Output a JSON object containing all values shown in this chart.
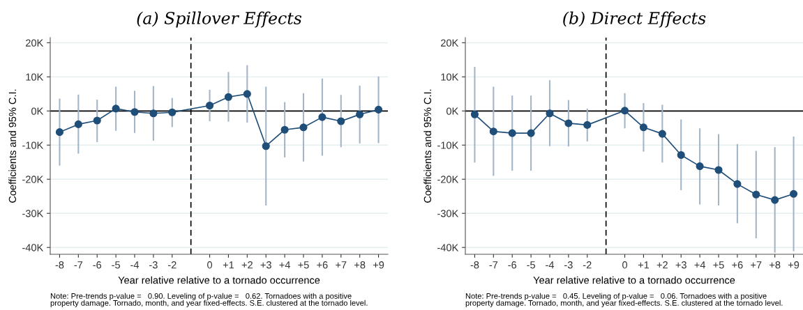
{
  "chart_data": [
    {
      "type": "line",
      "title": "(a) Spillover Effects",
      "xlabel": "Year relative relative to a tornado occurrence",
      "ylabel": "Coefficients and 95% C.I.",
      "x": [
        -8,
        -7,
        -6,
        -5,
        -4,
        -3,
        -2,
        0,
        1,
        2,
        3,
        4,
        5,
        6,
        7,
        8,
        9
      ],
      "xlim": [
        -8.5,
        9.5
      ],
      "xticks": [
        -8,
        -7,
        -6,
        -5,
        -4,
        -3,
        -2,
        0,
        {
          "value": 1,
          "label": "+1"
        },
        {
          "value": 2,
          "label": "+2"
        },
        {
          "value": 3,
          "label": "+3"
        },
        {
          "value": 4,
          "label": "+4"
        },
        {
          "value": 5,
          "label": "+5"
        },
        {
          "value": 6,
          "label": "+6"
        },
        {
          "value": 7,
          "label": "+7"
        },
        {
          "value": 8,
          "label": "+8"
        },
        {
          "value": 9,
          "label": "+9"
        }
      ],
      "series": [
        {
          "color": "#1f4e79",
          "values": [
            -6.2,
            -3.9,
            -2.8,
            0.7,
            -0.3,
            -0.7,
            -0.4,
            1.6,
            4.1,
            5.0,
            -10.3,
            -5.5,
            -4.8,
            -1.8,
            -3.0,
            -1.0,
            0.4
          ],
          "errors": [
            [
              -15.8,
              3.4
            ],
            [
              -12.3,
              4.6
            ],
            [
              -8.9,
              3.1
            ],
            [
              -5.6,
              6.9
            ],
            [
              -6.2,
              5.7
            ],
            [
              -8.5,
              7.1
            ],
            [
              -4.5,
              3.6
            ],
            [
              -2.8,
              6.0
            ],
            [
              -2.9,
              11.2
            ],
            [
              -3.2,
              13.2
            ],
            [
              -27.5,
              6.9
            ],
            [
              -13.4,
              2.4
            ],
            [
              -14.6,
              5.0
            ],
            [
              -12.9,
              9.3
            ],
            [
              -10.4,
              4.5
            ],
            [
              -9.3,
              7.2
            ],
            [
              -9.2,
              9.9
            ]
          ]
        }
      ],
      "marker": "circle",
      "line_style": "solid",
      "grid": "y",
      "ylim": [
        -42,
        21.5
      ],
      "yticks": [
        {
          "value": -40,
          "label": "-40K"
        },
        {
          "value": -30,
          "label": "-30K"
        },
        {
          "value": -20,
          "label": "-20K"
        },
        {
          "value": -10,
          "label": "-10K"
        },
        {
          "value": 0,
          "label": "0K"
        },
        {
          "value": 10,
          "label": "10K"
        },
        {
          "value": 20,
          "label": "20K"
        }
      ],
      "ref_lines": [
        {
          "axis": "y",
          "value": 0,
          "color": "#000000",
          "line_style": "solid"
        },
        {
          "axis": "x",
          "value": -1,
          "color": "#000000",
          "line_style": "dashed"
        }
      ],
      "annotations": [
        "Note: Pre-trends p-value =   0.90. Leveling of p-value =   0.62. Tornadoes with a positive\nproperty damage. Tornado, month, and year fixed-effects. S.E. clustered at the tornado level."
      ]
    },
    {
      "type": "line",
      "title": "(b) Direct Effects",
      "xlabel": "Year relative relative to a tornado occurrence",
      "ylabel": "Coefficients and 95% C.I.",
      "x": [
        -8,
        -7,
        -6,
        -5,
        -4,
        -3,
        -2,
        0,
        1,
        2,
        3,
        4,
        5,
        6,
        7,
        8,
        9
      ],
      "xlim": [
        -8.5,
        9.5
      ],
      "xticks": [
        -8,
        -7,
        -6,
        -5,
        -4,
        -3,
        -2,
        0,
        {
          "value": 1,
          "label": "+1"
        },
        {
          "value": 2,
          "label": "+2"
        },
        {
          "value": 3,
          "label": "+3"
        },
        {
          "value": 4,
          "label": "+4"
        },
        {
          "value": 5,
          "label": "+5"
        },
        {
          "value": 6,
          "label": "+6"
        },
        {
          "value": 7,
          "label": "+7"
        },
        {
          "value": 8,
          "label": "+8"
        },
        {
          "value": 9,
          "label": "+9"
        }
      ],
      "series": [
        {
          "color": "#1f4e79",
          "values": [
            -1.0,
            -6.0,
            -6.5,
            -6.5,
            -0.7,
            -3.6,
            -4.1,
            0.1,
            -4.8,
            -6.7,
            -12.9,
            -16.2,
            -17.3,
            -21.4,
            -24.5,
            -26.1,
            -24.3
          ],
          "errors": [
            [
              -14.9,
              12.7
            ],
            [
              -18.8,
              6.9
            ],
            [
              -17.3,
              4.3
            ],
            [
              -17.3,
              4.3
            ],
            [
              -10.1,
              8.8
            ],
            [
              -10.2,
              3.0
            ],
            [
              -8.7,
              0.5
            ],
            [
              -4.9,
              5.0
            ],
            [
              -11.7,
              2.1
            ],
            [
              -14.9,
              1.6
            ],
            [
              -23.0,
              -2.7
            ],
            [
              -27.2,
              -5.3
            ],
            [
              -27.5,
              -7.0
            ],
            [
              -32.7,
              -9.9
            ],
            [
              -37.1,
              -11.9
            ],
            [
              -41.3,
              -10.8
            ],
            [
              -40.9,
              -7.7
            ]
          ]
        }
      ],
      "marker": "circle",
      "line_style": "solid",
      "grid": "y",
      "ylim": [
        -42,
        21.5
      ],
      "yticks": [
        {
          "value": -40,
          "label": "-40K"
        },
        {
          "value": -30,
          "label": "-30K"
        },
        {
          "value": -20,
          "label": "-20K"
        },
        {
          "value": -10,
          "label": "-10K"
        },
        {
          "value": 0,
          "label": "0K"
        },
        {
          "value": 10,
          "label": "10K"
        },
        {
          "value": 20,
          "label": "20K"
        }
      ],
      "ref_lines": [
        {
          "axis": "y",
          "value": 0,
          "color": "#000000",
          "line_style": "solid"
        },
        {
          "axis": "x",
          "value": -1,
          "color": "#000000",
          "line_style": "dashed"
        }
      ],
      "annotations": [
        "Note: Pre-trends p-value =   0.45. Leveling of p-value =   0.06. Tornadoes with a positive\nproperty damage. Tornado, month, and year fixed-effects. S.E. clustered at the tornado level."
      ]
    }
  ]
}
